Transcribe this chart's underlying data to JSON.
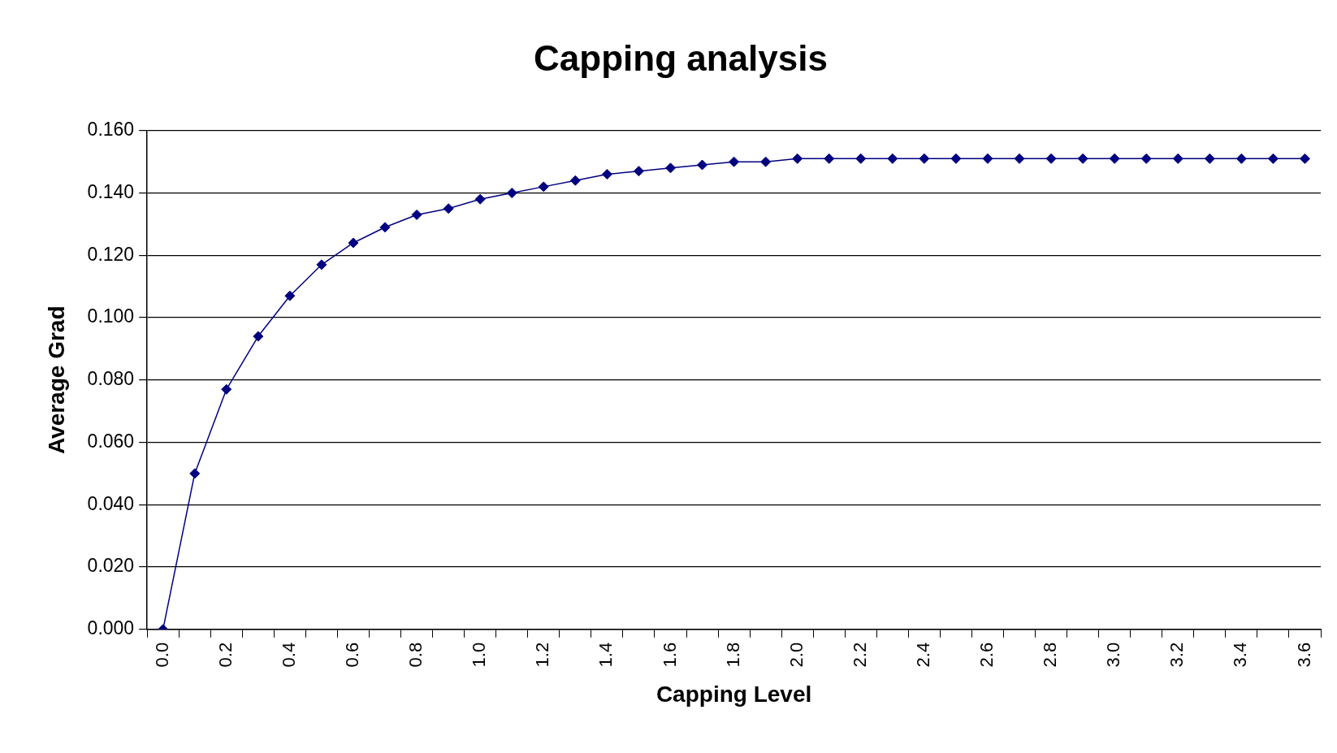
{
  "chart_data": {
    "type": "line",
    "title": "Capping analysis",
    "xlabel": "Capping Level",
    "ylabel": "Average Grad",
    "categories": [
      "0.0",
      null,
      "0.2",
      null,
      "0.4",
      null,
      "0.6",
      null,
      "0.8",
      null,
      "1.0",
      null,
      "1.2",
      null,
      "1.4",
      null,
      "1.6",
      null,
      "1.8",
      null,
      "2.0",
      null,
      "2.2",
      null,
      "2.4",
      null,
      "2.6",
      null,
      "2.8",
      null,
      "3.0",
      null,
      "3.2",
      null,
      "3.4",
      null,
      "3.6"
    ],
    "series": [
      {
        "color": "#000080",
        "values": [
          0,
          0.05,
          0.077,
          0.094,
          0.107,
          0.117,
          0.124,
          0.129,
          0.133,
          0.135,
          0.138,
          0.14,
          0.142,
          0.144,
          0.146,
          0.147,
          0.148,
          0.149,
          0.15,
          0.15,
          0.151,
          0.151,
          0.151,
          0.151,
          0.151,
          0.151,
          0.151,
          0.151,
          0.151,
          0.151,
          0.151,
          0.151,
          0.151,
          0.151,
          0.151,
          0.151,
          0.151
        ]
      }
    ],
    "ylim": [
      0,
      0.16
    ],
    "yticks": [
      {
        "value": 0,
        "label": "0.000"
      },
      {
        "value": 0.02,
        "label": "0.020"
      },
      {
        "value": 0.04,
        "label": "0.040"
      },
      {
        "value": 0.06,
        "label": "0.060"
      },
      {
        "value": 0.08,
        "label": "0.080"
      },
      {
        "value": 0.1,
        "label": "0.100"
      },
      {
        "value": 0.12,
        "label": "0.120"
      },
      {
        "value": 0.14,
        "label": "0.140"
      },
      {
        "value": 0.16,
        "label": "0.160"
      }
    ],
    "grid": "y",
    "legend": false,
    "marker": "diamond",
    "line_style": "solid"
  }
}
